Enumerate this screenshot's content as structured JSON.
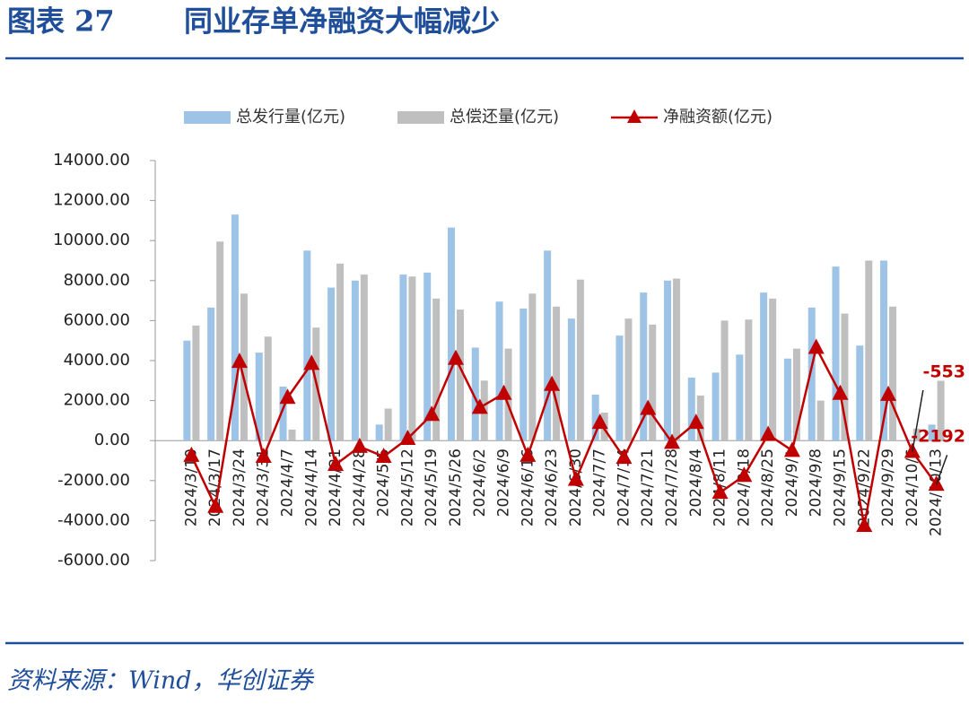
{
  "header": {
    "label": "图表 27",
    "title": "同业存单净融资大幅减少"
  },
  "chart_data": {
    "type": "bar-line",
    "categories": [
      "2024/3/10",
      "2024/3/17",
      "2024/3/24",
      "2024/3/31",
      "2024/4/7",
      "2024/4/14",
      "2024/4/21",
      "2024/4/28",
      "2024/5/5",
      "2024/5/12",
      "2024/5/19",
      "2024/5/26",
      "2024/6/2",
      "2024/6/9",
      "2024/6/16",
      "2024/6/23",
      "2024/6/30",
      "2024/7/7",
      "2024/7/14",
      "2024/7/21",
      "2024/7/28",
      "2024/8/4",
      "2024/8/11",
      "2024/8/18",
      "2024/8/25",
      "2024/9/1",
      "2024/9/8",
      "2024/9/15",
      "2024/9/22",
      "2024/9/29",
      "2024/10/6",
      "2024/10/13"
    ],
    "series": [
      {
        "name": "总发行量(亿元)",
        "type": "bar",
        "color": "#9dc3e6",
        "values": [
          5000,
          6650,
          11300,
          4400,
          2700,
          9500,
          7650,
          8000,
          800,
          8300,
          8400,
          10650,
          4650,
          6950,
          6600,
          9500,
          6100,
          2300,
          5250,
          7400,
          8000,
          3150,
          3400,
          4300,
          7400,
          4100,
          6650,
          8700,
          4750,
          9000,
          47,
          800
        ]
      },
      {
        "name": "总偿还量(亿元)",
        "type": "bar",
        "color": "#bfbfbf",
        "values": [
          5750,
          9950,
          7350,
          5200,
          550,
          5650,
          8850,
          8300,
          1600,
          8200,
          7100,
          6550,
          3000,
          4600,
          7350,
          6700,
          8050,
          1400,
          6100,
          5800,
          8100,
          2250,
          6000,
          6050,
          7100,
          4600,
          2000,
          6350,
          9000,
          6700,
          600,
          2992
        ]
      },
      {
        "name": "净融资额(亿元)",
        "type": "line",
        "color": "#c00000",
        "values": [
          -750,
          -3300,
          3950,
          -800,
          2150,
          3850,
          -1200,
          -300,
          -800,
          100,
          1300,
          4100,
          1650,
          2350,
          -750,
          2800,
          -1950,
          900,
          -850,
          1600,
          -100,
          900,
          -2600,
          -1750,
          300,
          -500,
          4650,
          2350,
          -4250,
          2300,
          -553,
          -2192
        ],
        "value_labels": [
          null,
          null,
          null,
          null,
          null,
          null,
          null,
          null,
          null,
          null,
          null,
          null,
          null,
          null,
          null,
          null,
          null,
          null,
          null,
          null,
          null,
          null,
          null,
          null,
          null,
          null,
          null,
          null,
          null,
          null,
          "-553",
          "-2192"
        ]
      }
    ],
    "ylim": [
      -6000,
      14000
    ],
    "yticks": [
      {
        "value": -6000,
        "label": "-6000.00"
      },
      {
        "value": -4000,
        "label": "-4000.00"
      },
      {
        "value": -2000,
        "label": "-2000.00"
      },
      {
        "value": 0,
        "label": "0.00"
      },
      {
        "value": 2000,
        "label": "2000.00"
      },
      {
        "value": 4000,
        "label": "4000.00"
      },
      {
        "value": 6000,
        "label": "6000.00"
      },
      {
        "value": 8000,
        "label": "8000.00"
      },
      {
        "value": 10000,
        "label": "10000.00"
      },
      {
        "value": 12000,
        "label": "12000.00"
      },
      {
        "value": 14000,
        "label": "14000.00"
      }
    ],
    "grid": false
  },
  "source": "资料来源：Wind，华创证券"
}
